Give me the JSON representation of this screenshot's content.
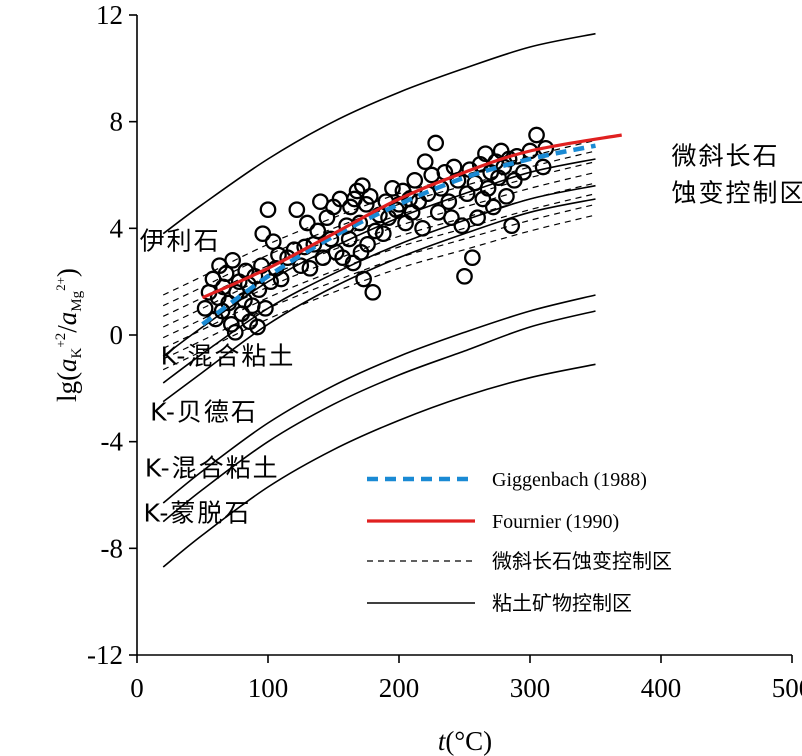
{
  "chart_data": {
    "type": "scatter",
    "title": "",
    "xlabel": {
      "italic": "t",
      "rest": "(°C)"
    },
    "ylabel": {
      "prefix": "lg(",
      "a1": "a",
      "sub1": "K",
      "sup1": "+",
      "exp": "2",
      "slash": "/",
      "a2": "a",
      "sub2": "Mg",
      "sup2": "2+",
      "close": ")"
    },
    "xlim": [
      0,
      500
    ],
    "ylim": [
      -12,
      12
    ],
    "xticks": [
      "0",
      "100",
      "200",
      "300",
      "400",
      "500"
    ],
    "yticks": [
      "-12",
      "-8",
      "-4",
      "0",
      "4",
      "8",
      "12"
    ],
    "xtick_values": [
      0,
      100,
      200,
      300,
      400,
      500
    ],
    "ytick_values": [
      -12,
      -8,
      -4,
      0,
      4,
      8,
      12
    ],
    "annotations": [
      {
        "text": "微斜长石",
        "x": 408,
        "y": 6.4
      },
      {
        "text": "蚀变控制区",
        "x": 408,
        "y": 5.0
      },
      {
        "text": "伊利石",
        "x": 2,
        "y": 3.2
      },
      {
        "text": "K-混合粘土",
        "x": 18,
        "y": -1.1
      },
      {
        "text": "K-贝德石",
        "x": 10,
        "y": -3.2
      },
      {
        "text": "K-混合粘土",
        "x": 6,
        "y": -5.3
      },
      {
        "text": "K-蒙脱石",
        "x": 5,
        "y": -7.0
      }
    ],
    "legend": {
      "placement": "bottom-right",
      "entries": [
        {
          "label": "Giggenbach (1988)",
          "style": "thick-dashed",
          "color": "#1a8ad4"
        },
        {
          "label": "Fournier (1990)",
          "style": "thick-solid",
          "color": "#e02020"
        },
        {
          "label": "微斜长石蚀变控制区",
          "style": "thin-dashed",
          "color": "#000000"
        },
        {
          "label": "粘土矿物控制区",
          "style": "thin-solid",
          "color": "#000000"
        }
      ]
    },
    "series": [
      {
        "style": "thin-solid",
        "x": [
          20,
          50,
          100,
          150,
          200,
          250,
          300,
          350
        ],
        "y": [
          3.8,
          4.9,
          6.6,
          8.0,
          9.1,
          10.0,
          10.8,
          11.3
        ]
      },
      {
        "style": "thin-solid",
        "x": [
          20,
          50,
          100,
          150,
          200,
          250,
          300,
          350
        ],
        "y": [
          -0.8,
          0.3,
          2.0,
          3.3,
          4.4,
          5.3,
          6.1,
          6.6
        ]
      },
      {
        "style": "thin-solid",
        "x": [
          20,
          50,
          100,
          150,
          200,
          250,
          300,
          350
        ],
        "y": [
          -1.8,
          -0.7,
          1.0,
          2.3,
          3.4,
          4.3,
          5.1,
          5.6
        ]
      },
      {
        "style": "thin-solid",
        "x": [
          20,
          50,
          100,
          150,
          200,
          250,
          300,
          350
        ],
        "y": [
          -2.5,
          -1.4,
          0.4,
          1.8,
          2.9,
          3.8,
          4.6,
          5.1
        ]
      },
      {
        "style": "thin-solid",
        "x": [
          20,
          50,
          100,
          150,
          200,
          250,
          300,
          350
        ],
        "y": [
          -6.3,
          -5.1,
          -3.3,
          -1.9,
          -0.8,
          0.1,
          0.9,
          1.5
        ]
      },
      {
        "style": "thin-solid",
        "x": [
          20,
          50,
          100,
          150,
          200,
          250,
          300,
          350
        ],
        "y": [
          -7.0,
          -5.8,
          -4.0,
          -2.6,
          -1.5,
          -0.6,
          0.3,
          0.9
        ]
      },
      {
        "style": "thin-solid",
        "x": [
          20,
          50,
          100,
          150,
          200,
          250,
          300,
          350
        ],
        "y": [
          -8.7,
          -7.5,
          -5.7,
          -4.3,
          -3.2,
          -2.3,
          -1.6,
          -1.1
        ]
      },
      {
        "style": "thin-dashed",
        "x": [
          20,
          50,
          100,
          150,
          200,
          250,
          300,
          350
        ],
        "y": [
          1.5,
          2.2,
          3.4,
          4.4,
          5.3,
          6.0,
          6.7,
          7.3
        ]
      },
      {
        "style": "thin-dashed",
        "x": [
          20,
          50,
          100,
          150,
          200,
          250,
          300,
          350
        ],
        "y": [
          1.1,
          1.8,
          3.0,
          4.0,
          4.9,
          5.6,
          6.3,
          6.9
        ]
      },
      {
        "style": "thin-dashed",
        "x": [
          20,
          50,
          100,
          150,
          200,
          250,
          300,
          350
        ],
        "y": [
          0.7,
          1.4,
          2.6,
          3.6,
          4.5,
          5.2,
          5.9,
          6.5
        ]
      },
      {
        "style": "thin-dashed",
        "x": [
          20,
          50,
          100,
          150,
          200,
          250,
          300,
          350
        ],
        "y": [
          0.3,
          1.0,
          2.2,
          3.2,
          4.1,
          4.8,
          5.5,
          6.1
        ]
      },
      {
        "style": "thin-dashed",
        "x": [
          20,
          50,
          100,
          150,
          200,
          250,
          300,
          350
        ],
        "y": [
          -0.1,
          0.6,
          1.8,
          2.8,
          3.7,
          4.4,
          5.1,
          5.7
        ]
      },
      {
        "style": "thin-dashed",
        "x": [
          20,
          50,
          100,
          150,
          200,
          250,
          300,
          350
        ],
        "y": [
          -0.5,
          0.2,
          1.4,
          2.4,
          3.3,
          4.0,
          4.7,
          5.3
        ]
      },
      {
        "style": "thin-dashed",
        "x": [
          20,
          50,
          100,
          150,
          200,
          250,
          300,
          350
        ],
        "y": [
          -0.9,
          -0.2,
          1.0,
          2.0,
          2.9,
          3.6,
          4.3,
          4.9
        ]
      },
      {
        "style": "thin-dashed",
        "x": [
          20,
          50,
          100,
          150,
          200,
          250,
          300,
          350
        ],
        "y": [
          -1.3,
          -0.6,
          0.6,
          1.6,
          2.5,
          3.2,
          3.9,
          4.5
        ]
      },
      {
        "style": "thick-dashed",
        "color": "#1a8ad4",
        "x": [
          50,
          100,
          150,
          200,
          250,
          300,
          350
        ],
        "y": [
          0.4,
          2.2,
          3.7,
          4.9,
          5.9,
          6.6,
          7.1
        ]
      },
      {
        "style": "thick-solid",
        "color": "#e02020",
        "x": [
          50,
          100,
          150,
          200,
          250,
          300,
          370
        ],
        "y": [
          1.4,
          2.5,
          3.8,
          5.1,
          6.1,
          6.9,
          7.5
        ]
      }
    ],
    "points": [
      [
        52,
        1.0
      ],
      [
        55,
        1.6
      ],
      [
        58,
        2.1
      ],
      [
        60,
        0.6
      ],
      [
        62,
        1.4
      ],
      [
        63,
        2.6
      ],
      [
        65,
        0.9
      ],
      [
        66,
        1.8
      ],
      [
        68,
        2.3
      ],
      [
        70,
        1.2
      ],
      [
        72,
        0.4
      ],
      [
        73,
        2.8
      ],
      [
        75,
        0.1
      ],
      [
        76,
        1.6
      ],
      [
        78,
        2.0
      ],
      [
        80,
        0.8
      ],
      [
        82,
        1.3
      ],
      [
        83,
        2.4
      ],
      [
        85,
        1.9
      ],
      [
        86,
        0.5
      ],
      [
        88,
        1.1
      ],
      [
        90,
        2.2
      ],
      [
        92,
        0.3
      ],
      [
        93,
        1.7
      ],
      [
        95,
        2.6
      ],
      [
        96,
        3.8
      ],
      [
        98,
        1.0
      ],
      [
        100,
        4.7
      ],
      [
        102,
        2.0
      ],
      [
        104,
        3.5
      ],
      [
        106,
        2.5
      ],
      [
        108,
        3.0
      ],
      [
        110,
        2.1
      ],
      [
        115,
        2.9
      ],
      [
        120,
        3.2
      ],
      [
        122,
        4.7
      ],
      [
        125,
        2.6
      ],
      [
        128,
        3.3
      ],
      [
        130,
        4.2
      ],
      [
        132,
        2.5
      ],
      [
        135,
        3.4
      ],
      [
        138,
        3.9
      ],
      [
        140,
        5.0
      ],
      [
        142,
        2.9
      ],
      [
        145,
        4.4
      ],
      [
        148,
        3.6
      ],
      [
        150,
        4.8
      ],
      [
        152,
        3.1
      ],
      [
        155,
        5.1
      ],
      [
        157,
        2.9
      ],
      [
        160,
        4.1
      ],
      [
        162,
        3.6
      ],
      [
        163,
        4.8
      ],
      [
        165,
        2.7
      ],
      [
        166,
        5.1
      ],
      [
        168,
        5.4
      ],
      [
        170,
        4.2
      ],
      [
        171,
        3.1
      ],
      [
        172,
        5.6
      ],
      [
        173,
        2.1
      ],
      [
        175,
        4.9
      ],
      [
        176,
        3.4
      ],
      [
        178,
        5.2
      ],
      [
        180,
        1.6
      ],
      [
        182,
        3.9
      ],
      [
        185,
        4.5
      ],
      [
        188,
        3.8
      ],
      [
        190,
        5.0
      ],
      [
        192,
        4.4
      ],
      [
        195,
        5.5
      ],
      [
        198,
        4.7
      ],
      [
        200,
        4.9
      ],
      [
        203,
        5.4
      ],
      [
        205,
        4.2
      ],
      [
        208,
        5.1
      ],
      [
        210,
        4.6
      ],
      [
        212,
        5.8
      ],
      [
        215,
        5.0
      ],
      [
        218,
        4.0
      ],
      [
        220,
        6.5
      ],
      [
        222,
        5.3
      ],
      [
        225,
        6.0
      ],
      [
        228,
        7.2
      ],
      [
        230,
        4.6
      ],
      [
        232,
        5.5
      ],
      [
        235,
        6.1
      ],
      [
        238,
        5.0
      ],
      [
        240,
        4.4
      ],
      [
        242,
        6.3
      ],
      [
        245,
        5.8
      ],
      [
        248,
        4.1
      ],
      [
        250,
        2.2
      ],
      [
        252,
        5.3
      ],
      [
        254,
        6.2
      ],
      [
        256,
        2.9
      ],
      [
        258,
        5.7
      ],
      [
        260,
        4.4
      ],
      [
        262,
        6.4
      ],
      [
        264,
        5.1
      ],
      [
        266,
        6.8
      ],
      [
        268,
        5.5
      ],
      [
        270,
        6.1
      ],
      [
        272,
        4.8
      ],
      [
        274,
        6.5
      ],
      [
        276,
        5.9
      ],
      [
        278,
        6.9
      ],
      [
        280,
        6.3
      ],
      [
        282,
        5.2
      ],
      [
        284,
        6.6
      ],
      [
        286,
        4.1
      ],
      [
        288,
        5.8
      ],
      [
        290,
        6.7
      ],
      [
        295,
        6.1
      ],
      [
        300,
        6.9
      ],
      [
        305,
        7.5
      ],
      [
        310,
        6.3
      ],
      [
        312,
        7.0
      ]
    ]
  }
}
